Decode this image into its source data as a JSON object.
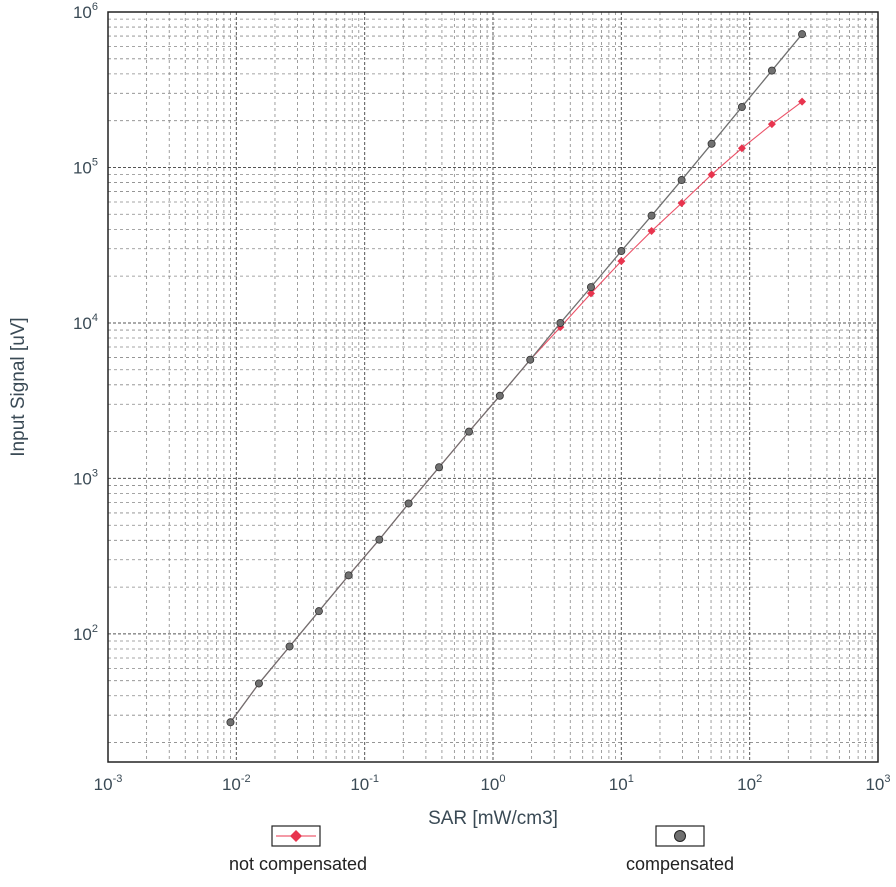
{
  "chart_data": {
    "type": "scatter",
    "title": "",
    "xlabel": "SAR [mW/cm3]",
    "ylabel": "Input Signal [uV]",
    "x_scale": "log",
    "y_scale": "log",
    "xlim": [
      0.001,
      1000
    ],
    "ylim": [
      15,
      1000000
    ],
    "grid": true,
    "x_ticks": [
      {
        "base": "10",
        "exp": "-3"
      },
      {
        "base": "10",
        "exp": "-2"
      },
      {
        "base": "10",
        "exp": "-1"
      },
      {
        "base": "10",
        "exp": "0"
      },
      {
        "base": "10",
        "exp": "1"
      },
      {
        "base": "10",
        "exp": "2"
      },
      {
        "base": "10",
        "exp": "3"
      }
    ],
    "y_ticks": [
      {
        "base": "10",
        "exp": "2"
      },
      {
        "base": "10",
        "exp": "3"
      },
      {
        "base": "10",
        "exp": "4"
      },
      {
        "base": "10",
        "exp": "5"
      },
      {
        "base": "10",
        "exp": "6"
      }
    ],
    "legend_position": "bottom",
    "series": [
      {
        "name": "not compensated",
        "color": "#e8344e",
        "marker": "diamond",
        "points": [
          [
            0.009,
            27
          ],
          [
            0.015,
            48
          ],
          [
            0.026,
            83
          ],
          [
            0.044,
            140
          ],
          [
            0.075,
            238
          ],
          [
            0.13,
            404
          ],
          [
            0.22,
            690
          ],
          [
            0.38,
            1180
          ],
          [
            0.65,
            2000
          ],
          [
            1.13,
            3400
          ],
          [
            1.95,
            5800
          ],
          [
            3.35,
            9400
          ],
          [
            5.8,
            15500
          ],
          [
            10.0,
            25000
          ],
          [
            17.2,
            39000
          ],
          [
            29.5,
            59000
          ],
          [
            50.5,
            90000
          ],
          [
            87,
            133000
          ],
          [
            149,
            190000
          ],
          [
            256,
            265000
          ]
        ]
      },
      {
        "name": "compensated",
        "color": "#707070",
        "marker": "circle",
        "points": [
          [
            0.009,
            27
          ],
          [
            0.015,
            48
          ],
          [
            0.026,
            83
          ],
          [
            0.044,
            140
          ],
          [
            0.075,
            238
          ],
          [
            0.13,
            404
          ],
          [
            0.22,
            690
          ],
          [
            0.38,
            1180
          ],
          [
            0.65,
            2000
          ],
          [
            1.13,
            3400
          ],
          [
            1.95,
            5800
          ],
          [
            3.35,
            10000
          ],
          [
            5.8,
            17000
          ],
          [
            10.0,
            29000
          ],
          [
            17.2,
            49000
          ],
          [
            29.5,
            83000
          ],
          [
            50.5,
            142000
          ],
          [
            87,
            245000
          ],
          [
            149,
            420000
          ],
          [
            256,
            720000
          ]
        ]
      }
    ]
  }
}
